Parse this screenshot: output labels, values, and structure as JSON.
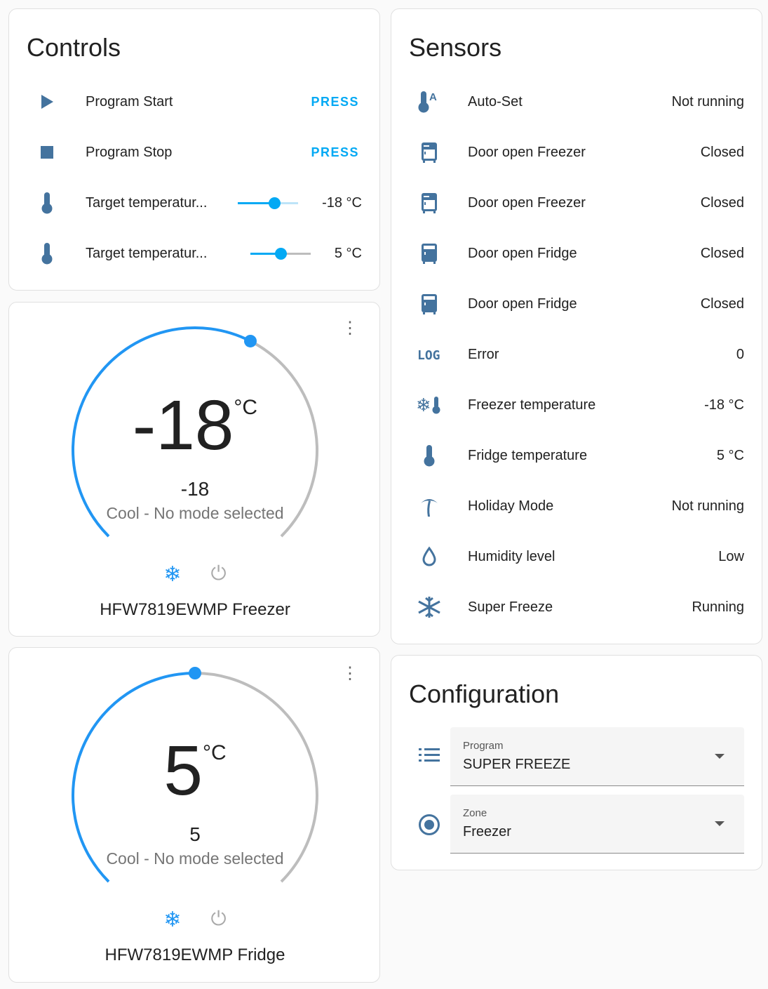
{
  "colors": {
    "icon": "#44739e",
    "accent": "#03a9f4",
    "dial": "#2196f3",
    "track": "#bdbdbd"
  },
  "controls": {
    "title": "Controls",
    "rows": [
      {
        "icon": "play-icon",
        "name": "Program Start",
        "action": "PRESS"
      },
      {
        "icon": "stop-icon",
        "name": "Program Stop",
        "action": "PRESS"
      },
      {
        "icon": "thermometer-icon",
        "name": "Target temperatur...",
        "value": "-18 °C",
        "slider_fraction": 0.6
      },
      {
        "icon": "thermometer-icon",
        "name": "Target temperatur...",
        "value": "5 °C",
        "slider_fraction": 0.5
      }
    ]
  },
  "thermostats": [
    {
      "temp": "-18",
      "unit": "°C",
      "target": "-18",
      "mode": "Cool - No mode selected",
      "name": "HFW7819EWMP Freezer",
      "dial_fraction": 0.6
    },
    {
      "temp": "5",
      "unit": "°C",
      "target": "5",
      "mode": "Cool - No mode selected",
      "name": "HFW7819EWMP Fridge",
      "dial_fraction": 0.5
    }
  ],
  "sensors": {
    "title": "Sensors",
    "rows": [
      {
        "icon": "thermometer-auto-icon",
        "name": "Auto-Set",
        "value": "Not running"
      },
      {
        "icon": "fridge-top-icon",
        "name": "Door open Freezer",
        "value": "Closed"
      },
      {
        "icon": "fridge-top-icon",
        "name": "Door open Freezer",
        "value": "Closed"
      },
      {
        "icon": "fridge-bottom-icon",
        "name": "Door open Fridge",
        "value": "Closed"
      },
      {
        "icon": "fridge-bottom-icon",
        "name": "Door open Fridge",
        "value": "Closed"
      },
      {
        "icon": "log-icon",
        "name": "Error",
        "value": "0",
        "icon_text": "LOG"
      },
      {
        "icon": "snowflake-thermometer-icon",
        "name": "Freezer temperature",
        "value": "-18 °C"
      },
      {
        "icon": "thermometer-icon",
        "name": "Fridge temperature",
        "value": "5 °C"
      },
      {
        "icon": "palm-tree-icon",
        "name": "Holiday Mode",
        "value": "Not running"
      },
      {
        "icon": "water-outline-icon",
        "name": "Humidity level",
        "value": "Low"
      },
      {
        "icon": "snowflake-icon",
        "name": "Super Freeze",
        "value": "Running"
      }
    ]
  },
  "configuration": {
    "title": "Configuration",
    "selects": [
      {
        "icon": "list-icon",
        "label": "Program",
        "value": "SUPER FREEZE"
      },
      {
        "icon": "radiobox-icon",
        "label": "Zone",
        "value": "Freezer"
      }
    ]
  }
}
